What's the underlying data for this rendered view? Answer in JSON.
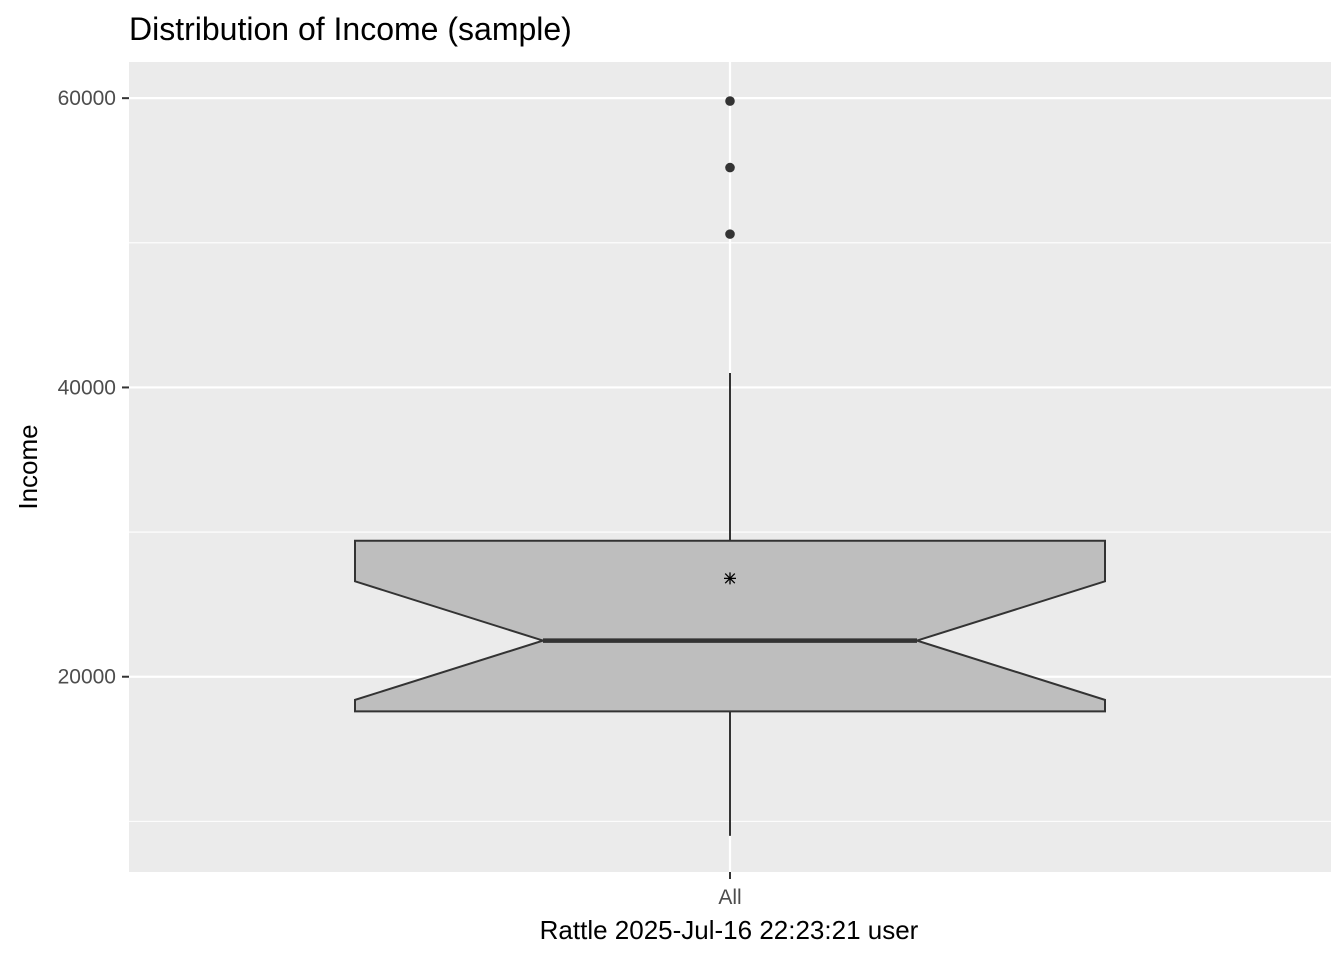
{
  "chart_data": {
    "type": "boxplot",
    "title": "Distribution of Income (sample)",
    "xlabel": "Rattle 2025-Jul-16 22:23:21 user",
    "ylabel": "Income",
    "categories": [
      "All"
    ],
    "yticks": [
      20000,
      40000,
      60000
    ],
    "yticks_minor": [
      10000,
      30000,
      50000
    ],
    "ylim": [
      6500,
      62500
    ],
    "grid": true,
    "notched": true,
    "box": {
      "category": "All",
      "min": 9000,
      "q1": 17600,
      "median": 22500,
      "q3": 29400,
      "max": 41000,
      "notch_low": 18400,
      "notch_high": 26600,
      "mean": 26800,
      "outliers": [
        50600,
        55200,
        59800
      ]
    },
    "colors": {
      "panel_bg": "#ebebeb",
      "grid": "#ffffff",
      "box_fill": "#bebebe",
      "box_line": "#333333",
      "text": "#000000",
      "tick_text": "#4d4d4d",
      "tick_mark": "#333333"
    }
  }
}
